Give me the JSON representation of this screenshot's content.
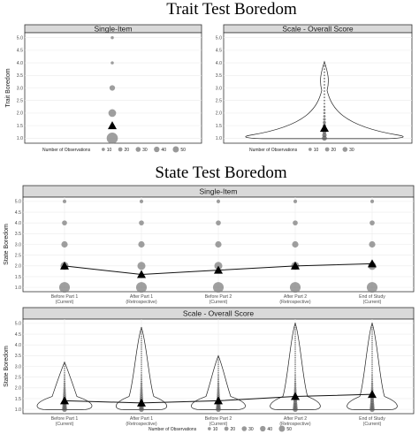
{
  "titles": {
    "trait": "Trait Test Boredom",
    "state": "State Test Boredom"
  },
  "legend": {
    "title": "Number of Observations",
    "small": [
      "10",
      "20",
      "30",
      "40",
      "50"
    ],
    "short": [
      "10",
      "20",
      "30"
    ]
  },
  "chart_data": [
    {
      "type": "scatter",
      "title": "Single-Item",
      "ylabel": "Trait Boredom",
      "ylim": [
        0.8,
        5.2
      ],
      "yticks": [
        "1.0",
        "1.5",
        "2.0",
        "2.5",
        "3.0",
        "3.5",
        "4.0",
        "4.5",
        "5.0"
      ],
      "points": [
        {
          "y": 5.0,
          "n": 1
        },
        {
          "y": 4.0,
          "n": 1
        },
        {
          "y": 3.0,
          "n": 8
        },
        {
          "y": 2.0,
          "n": 20
        },
        {
          "y": 1.0,
          "n": 50
        }
      ],
      "mean": 1.5,
      "grid": true
    },
    {
      "type": "scatter",
      "title": "Scale - Overall Score",
      "ylabel": "",
      "ylim": [
        0.8,
        5.2
      ],
      "yticks": [
        "1.0",
        "1.5",
        "2.0",
        "2.5",
        "3.0",
        "3.5",
        "4.0",
        "4.5",
        "5.0"
      ],
      "mean": 1.4,
      "violin": true,
      "grid": true
    },
    {
      "type": "line",
      "title": "Single-Item",
      "ylabel": "State Boredom",
      "ylim": [
        0.8,
        5.2
      ],
      "yticks": [
        "1.0",
        "1.5",
        "2.0",
        "2.5",
        "3.0",
        "3.5",
        "4.0",
        "4.5",
        "5.0"
      ],
      "categories": [
        [
          "Before Part 1",
          "(Current)"
        ],
        [
          "After Part 1",
          "(Retrospective)"
        ],
        [
          "Before Part 2",
          "(Current)"
        ],
        [
          "After Part 2",
          "(Retrospective)"
        ],
        [
          "End of Study",
          "(Current)"
        ]
      ],
      "means": [
        2.0,
        1.6,
        1.8,
        2.0,
        2.1
      ],
      "levels": [
        {
          "y": 5.0,
          "n": 2
        },
        {
          "y": 4.0,
          "n": 6
        },
        {
          "y": 3.0,
          "n": 12
        },
        {
          "y": 2.0,
          "n": 22
        },
        {
          "y": 1.0,
          "n": 45
        }
      ],
      "grid": true
    },
    {
      "type": "line",
      "title": "Scale - Overall Score",
      "ylabel": "State Boredom",
      "ylim": [
        0.8,
        5.2
      ],
      "yticks": [
        "1.0",
        "1.5",
        "2.0",
        "2.5",
        "3.0",
        "3.5",
        "4.0",
        "4.5",
        "5.0"
      ],
      "categories": [
        [
          "Before Part 1",
          "(Current)"
        ],
        [
          "After Part 1",
          "(Retrospective)"
        ],
        [
          "Before Part 2",
          "(Current)"
        ],
        [
          "After Part 2",
          "(Retrospective)"
        ],
        [
          "End of Study",
          "(Current)"
        ]
      ],
      "means": [
        1.4,
        1.3,
        1.4,
        1.6,
        1.7
      ],
      "maxima": [
        3.2,
        4.8,
        3.5,
        5.0,
        5.0
      ],
      "violin": true,
      "grid": true
    }
  ]
}
